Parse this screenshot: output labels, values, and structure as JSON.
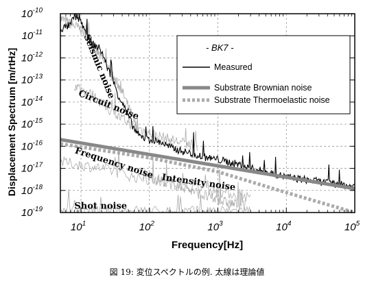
{
  "chart_data": {
    "type": "line",
    "xlabel": "Frequency[Hz]",
    "ylabel": "Displacement Spectrum [m/rtHz]",
    "x_scale": "log",
    "y_scale": "log",
    "xlim": [
      5,
      100000
    ],
    "ylim": [
      1e-19,
      1e-10
    ],
    "x_ticks": [
      {
        "value": 10,
        "base": "10",
        "exp": "1"
      },
      {
        "value": 100,
        "base": "10",
        "exp": "2"
      },
      {
        "value": 1000,
        "base": "10",
        "exp": "3"
      },
      {
        "value": 10000,
        "base": "10",
        "exp": "4"
      },
      {
        "value": 100000,
        "base": "10",
        "exp": "5"
      }
    ],
    "y_ticks": [
      {
        "value": 1e-10,
        "base": "10",
        "exp": "-10"
      },
      {
        "value": 1e-11,
        "base": "10",
        "exp": "-11"
      },
      {
        "value": 1e-12,
        "base": "10",
        "exp": "-12"
      },
      {
        "value": 1e-13,
        "base": "10",
        "exp": "-13"
      },
      {
        "value": 1e-14,
        "base": "10",
        "exp": "-14"
      },
      {
        "value": 1e-15,
        "base": "10",
        "exp": "-15"
      },
      {
        "value": 1e-16,
        "base": "10",
        "exp": "-16"
      },
      {
        "value": 1e-17,
        "base": "10",
        "exp": "-17"
      },
      {
        "value": 1e-18,
        "base": "10",
        "exp": "-18"
      },
      {
        "value": 1e-19,
        "base": "10",
        "exp": "-19"
      }
    ],
    "grid": "dashed",
    "legend": {
      "title": "- BK7 -",
      "position": "top-right",
      "entries": [
        "Measured",
        "Substrate Brownian noise",
        "Substrate Thermoelastic noise"
      ]
    },
    "series": [
      {
        "name": "Measured",
        "color": "#000000",
        "style": "solid-thin",
        "x": [
          5,
          7,
          8,
          10,
          12,
          15,
          18,
          20,
          25,
          30,
          35,
          40,
          50,
          60,
          70,
          80,
          100,
          150,
          200,
          300,
          500,
          700,
          1000,
          2000,
          3000,
          5000,
          10000,
          20000,
          50000,
          100000
        ],
        "y": [
          2e-11,
          3e-11,
          8e-11,
          5e-11,
          1e-11,
          4e-12,
          3e-12,
          2e-12,
          3e-13,
          8e-14,
          2e-14,
          1e-14,
          2e-15,
          6e-16,
          3e-16,
          2.5e-16,
          2e-16,
          1.5e-16,
          9e-17,
          6e-17,
          4e-17,
          3e-17,
          2.5e-17,
          1.5e-17,
          1e-17,
          7e-18,
          4e-18,
          3e-18,
          2e-18,
          1.5e-18
        ]
      },
      {
        "name": "Substrate Brownian noise",
        "color": "#888888",
        "style": "thick",
        "x": [
          5,
          100000
        ],
        "y": [
          2e-16,
          1.2e-18
        ]
      },
      {
        "name": "Substrate Thermoelastic noise",
        "color": "#aaaaaa",
        "style": "dotted-thick",
        "x": [
          5,
          100,
          1000,
          10000,
          100000
        ],
        "y": [
          1.3e-16,
          3e-17,
          7e-18,
          8e-19,
          1e-19
        ]
      }
    ],
    "annotations": [
      {
        "text": "Seismic noise",
        "x": 11,
        "y": 1e-11
      },
      {
        "text": "Circuit noise",
        "x": 9,
        "y": 2e-14
      },
      {
        "text": "Frequency noise",
        "x": 8,
        "y": 5e-17
      },
      {
        "text": "Intensity noise",
        "x": 150,
        "y": 3e-18
      },
      {
        "text": "Shot noise",
        "x": 8,
        "y": 1.5e-19
      }
    ]
  },
  "caption": "図 19: 変位スペクトルの例. 太線は理論値"
}
